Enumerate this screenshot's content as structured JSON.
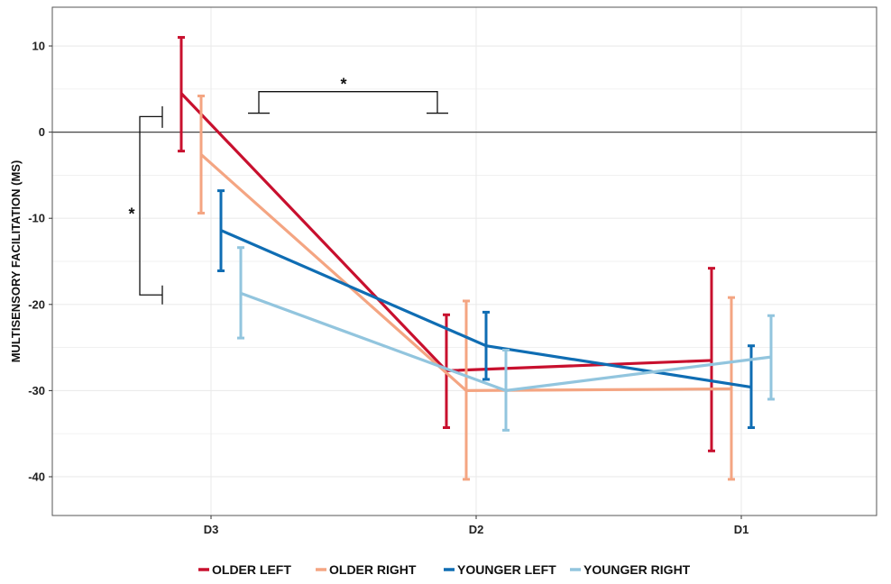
{
  "chart_data": {
    "type": "line",
    "ylabel": "MULTISENSORY FACILITATION (MS)",
    "xlabel": "",
    "categories": [
      "D3",
      "D2",
      "D1"
    ],
    "yticks": [
      10,
      0,
      -10,
      -20,
      -30,
      -40
    ],
    "ylim": [
      -44.5,
      14.5
    ],
    "grid": true,
    "legend_position": "bottom",
    "zero_line": true,
    "series": [
      {
        "name": "OLDER LEFT",
        "color": "#c8102e",
        "values": [
          4.5,
          -27.7,
          -26.5
        ],
        "upper": [
          11.0,
          -21.2,
          -15.8
        ],
        "lower": [
          -2.2,
          -34.3,
          -37.0
        ]
      },
      {
        "name": "OLDER RIGHT",
        "color": "#f4a582",
        "values": [
          -2.6,
          -30.0,
          -29.8
        ],
        "upper": [
          4.2,
          -19.6,
          -19.2
        ],
        "lower": [
          -9.4,
          -40.3,
          -40.3
        ]
      },
      {
        "name": "YOUNGER LEFT",
        "color": "#0f6db3",
        "values": [
          -11.4,
          -24.8,
          -29.6
        ],
        "upper": [
          -6.8,
          -20.9,
          -24.8
        ],
        "lower": [
          -16.1,
          -28.7,
          -34.3
        ]
      },
      {
        "name": "YOUNGER RIGHT",
        "color": "#92c5de",
        "values": [
          -18.7,
          -30.0,
          -26.1
        ],
        "upper": [
          -13.4,
          -25.3,
          -21.3
        ],
        "lower": [
          -23.9,
          -34.6,
          -31.0
        ]
      }
    ],
    "annotations": [
      {
        "text": "*",
        "type": "bracket",
        "between": "D3 OLDER vs D3 YOUNGER"
      },
      {
        "text": "*",
        "type": "bracket",
        "between": "D3 vs D2 (OLDER)"
      }
    ]
  }
}
